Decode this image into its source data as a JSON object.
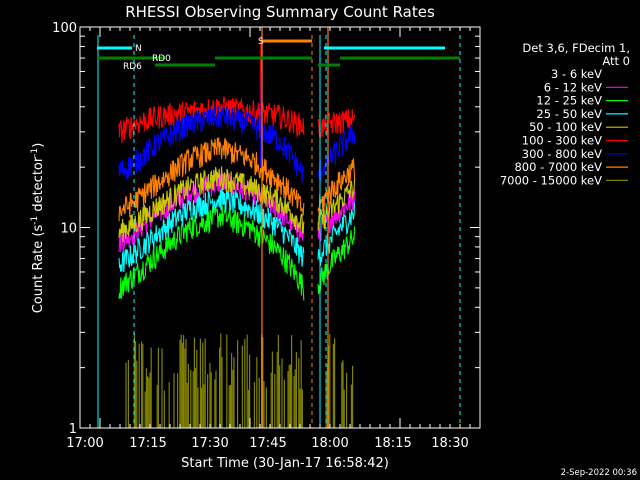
{
  "chart_data": {
    "type": "line",
    "title": "RHESSI Observing Summary Count Rates",
    "xlabel": "Start Time (30-Jan-17 16:58:42)",
    "ylabel_main": "Count Rate (s",
    "ylabel_sup1": "-1",
    "ylabel_mid": " detector",
    "ylabel_sup2": "-1",
    "ylabel_end": ")",
    "y_scale": "log",
    "ylim": [
      1,
      100
    ],
    "xlim_minutes": [
      -2,
      38
    ],
    "x_ticks": [
      {
        "m": 0,
        "label": "17:00"
      },
      {
        "m": 15,
        "label": "17:15"
      },
      {
        "m": 30,
        "label": "17:30"
      },
      {
        "m": 45,
        "label": "17:45"
      },
      {
        "m": 60,
        "label": "18:00"
      },
      {
        "m": 75,
        "label": "18:15"
      },
      {
        "m": 90,
        "label": "18:30"
      }
    ],
    "y_ticks": [
      {
        "v": 1,
        "label": "1"
      },
      {
        "v": 10,
        "label": "10"
      },
      {
        "v": 100,
        "label": "100"
      }
    ],
    "legend_header": [
      "Det 3,6, FDecim 1,",
      "Att 0"
    ],
    "legend_position": "top-right outside",
    "series": [
      {
        "name": "3 - 6 keV",
        "color": "#000000",
        "x": [
          1.9,
          3.5,
          6,
          9,
          12,
          15,
          18,
          20.4,
          21.8,
          23,
          25.5
        ],
        "y": [
          15,
          17.5,
          23,
          30,
          32,
          30,
          24,
          15,
          15.5,
          19,
          25
        ]
      },
      {
        "name": "6 - 12 keV",
        "color": "#ff00ff",
        "x": [
          1.9,
          3.5,
          6,
          9,
          12,
          15,
          18,
          20.4,
          21.8,
          23,
          25.5
        ],
        "y": [
          8.5,
          9.5,
          12,
          15,
          17,
          15,
          12,
          9,
          9.5,
          11,
          14
        ]
      },
      {
        "name": "12 - 25 keV",
        "color": "#00ff00",
        "x": [
          1.9,
          3.5,
          6,
          9,
          12,
          15,
          18,
          20.4,
          21.8,
          23,
          25.5
        ],
        "y": [
          5,
          5.8,
          7.5,
          10,
          11.5,
          10,
          7.5,
          5,
          5.2,
          6.5,
          9
        ]
      },
      {
        "name": "25 - 50 keV",
        "color": "#00ffff",
        "x": [
          1.9,
          3.5,
          6,
          9,
          12,
          15,
          18,
          20.4,
          21.8,
          23,
          25.5
        ],
        "y": [
          6.5,
          7.5,
          9.5,
          12.5,
          14,
          12.5,
          10,
          7,
          7.2,
          8.5,
          12
        ]
      },
      {
        "name": "50 - 100 keV",
        "color": "#c8c800",
        "x": [
          1.9,
          3.5,
          6,
          9,
          12,
          15,
          18,
          20.4,
          21.8,
          23,
          25.5
        ],
        "y": [
          9.5,
          10.5,
          13,
          16,
          18,
          16,
          13.5,
          10,
          10.5,
          12,
          16
        ]
      },
      {
        "name": "100 - 300 keV",
        "color": "#ff0000",
        "x": [
          1.9,
          3.5,
          6,
          9,
          12,
          15,
          18,
          20.4,
          21.8,
          23,
          25.5
        ],
        "y": [
          30,
          33,
          36,
          38,
          40,
          38,
          36,
          32,
          31,
          33,
          35
        ]
      },
      {
        "name": "300 - 800 keV",
        "color": "#0000ff",
        "x": [
          1.9,
          3.5,
          6,
          9,
          12,
          15,
          18,
          20.4,
          21.8,
          23,
          25.5
        ],
        "y": [
          19,
          21,
          27,
          33,
          36,
          33,
          27,
          18,
          18.5,
          22,
          30
        ]
      },
      {
        "name": "800 - 7000 keV",
        "color": "#ff8000",
        "x": [
          1.9,
          3.5,
          6,
          9,
          12,
          15,
          18,
          20.4,
          21.8,
          23,
          25.5
        ],
        "y": [
          12,
          13.5,
          17,
          22,
          25,
          22,
          17,
          12,
          12.5,
          15,
          20
        ]
      },
      {
        "name": "7000 - 15000 keV",
        "color": "#808000",
        "x": [
          4,
          6,
          9,
          12,
          15,
          18,
          20.4
        ],
        "y": [
          1.5,
          1.5,
          1.5,
          1.5,
          1.5,
          1.5,
          1.5
        ]
      }
    ],
    "flag_labels": {
      "n": "N",
      "s": "S",
      "rd0": "RD0",
      "rd6": "RD6"
    },
    "date_stamp": "2-Sep-2022 00:36"
  }
}
